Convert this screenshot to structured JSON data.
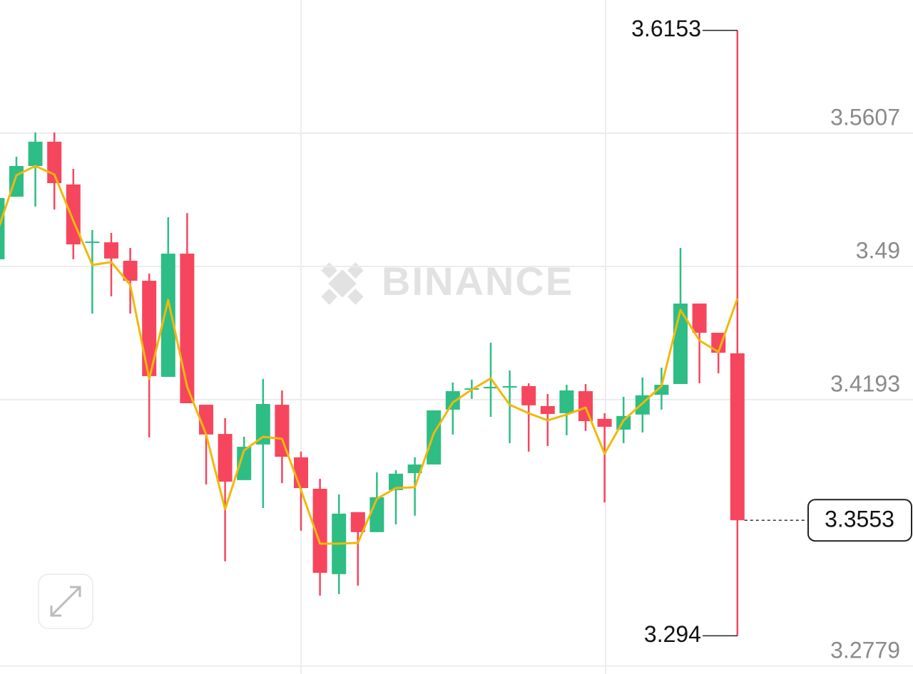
{
  "chart_data": {
    "type": "candlestick",
    "watermark": "BINANCE",
    "up_color": "#2ebd85",
    "down_color": "#f6465d",
    "ylim": [
      3.2737,
      3.6314
    ],
    "yticks": [
      3.2779,
      3.4193,
      3.49,
      3.5607
    ],
    "grid": true,
    "open": [
      3.4938,
      3.527,
      3.5433,
      3.5562,
      3.5335,
      3.5025,
      3.5028,
      3.493,
      3.4824,
      3.4314,
      3.4968,
      3.4166,
      3.4011,
      3.3766,
      3.3955,
      3.4166,
      3.3887,
      3.372,
      3.3267,
      3.3596,
      3.349,
      3.3713,
      3.3803,
      3.3849,
      3.414,
      3.4246,
      3.4253,
      3.4257,
      3.4265,
      3.4159,
      3.4121,
      3.4238,
      3.4091,
      3.4034,
      3.4114,
      3.4219,
      3.4276,
      3.4703,
      3.4548,
      3.4439
    ],
    "high": [
      3.5263,
      3.5482,
      3.5611,
      3.5611,
      3.5418,
      3.5093,
      3.5078,
      3.4998,
      3.4862,
      3.5161,
      3.5183,
      3.4166,
      3.4095,
      3.3996,
      3.4303,
      3.4242,
      3.3917,
      3.3773,
      3.369,
      3.3596,
      3.3807,
      3.3819,
      3.3887,
      3.4136,
      3.4284,
      3.4299,
      3.4495,
      3.4348,
      3.428,
      3.4223,
      3.4272,
      3.4276,
      3.4121,
      3.4208,
      3.431,
      3.4363,
      3.4998,
      3.4703,
      3.4548,
      3.6153
    ],
    "low": [
      3.4938,
      3.527,
      3.5218,
      3.5202,
      3.4938,
      3.465,
      3.4741,
      3.465,
      3.3993,
      3.4314,
      3.4174,
      3.3743,
      3.3335,
      3.3766,
      3.3618,
      3.375,
      3.3497,
      3.3153,
      3.3161,
      3.3206,
      3.349,
      3.3531,
      3.3577,
      3.3849,
      3.4008,
      3.4197,
      3.4102,
      3.3962,
      3.3917,
      3.3947,
      3.4004,
      3.4027,
      3.3648,
      3.3962,
      3.4019,
      3.414,
      3.4276,
      3.428,
      3.4333,
      3.294
    ],
    "close": [
      3.5263,
      3.5433,
      3.5562,
      3.5342,
      3.5017,
      3.5032,
      3.4942,
      3.4824,
      3.4318,
      3.4968,
      3.4174,
      3.4008,
      3.3758,
      3.3943,
      3.417,
      3.389,
      3.3724,
      3.3274,
      3.3588,
      3.349,
      3.3675,
      3.38,
      3.3849,
      3.4136,
      3.4238,
      3.4253,
      3.4261,
      3.4265,
      3.4163,
      3.4117,
      3.4242,
      3.4079,
      3.4049,
      3.4106,
      3.4216,
      3.4272,
      3.4703,
      3.4548,
      3.4442,
      3.3553
    ],
    "ma": {
      "color": "#f0b90b",
      "values": [
        3.5085,
        3.5384,
        3.5433,
        3.5388,
        3.5142,
        3.4908,
        3.4923,
        3.4802,
        3.4303,
        3.4722,
        3.4261,
        3.4008,
        3.3611,
        3.3924,
        3.3996,
        3.3985,
        3.3713,
        3.3429,
        3.3429,
        3.3433,
        3.3667,
        3.3724,
        3.3728,
        3.4015,
        3.4178,
        3.4246,
        3.4306,
        3.4166,
        3.4121,
        3.4083,
        3.4114,
        3.4151,
        3.3906,
        3.4083,
        3.4174,
        3.4265,
        3.4669,
        3.4507,
        3.4446,
        3.473
      ]
    }
  }
}
